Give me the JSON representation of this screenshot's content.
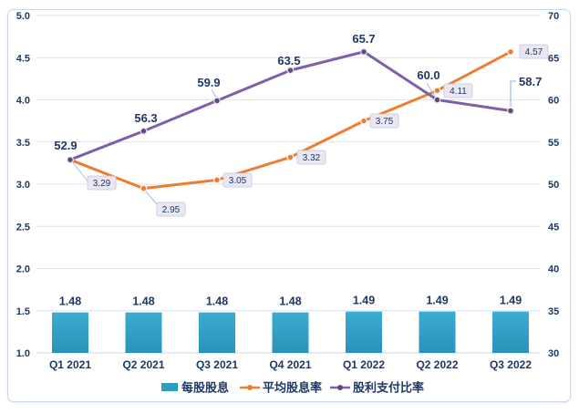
{
  "chart_data": {
    "type": "combo",
    "categories": [
      "Q1 2021",
      "Q2 2021",
      "Q3 2021",
      "Q4 2021",
      "Q1 2022",
      "Q2 2022",
      "Q3 2022"
    ],
    "series": [
      {
        "name": "每股股息",
        "type": "bar",
        "axis": "left",
        "values": [
          1.48,
          1.48,
          1.48,
          1.48,
          1.49,
          1.49,
          1.49
        ],
        "labels": [
          "1.48",
          "1.48",
          "1.48",
          "1.48",
          "1.49",
          "1.49",
          "1.49"
        ]
      },
      {
        "name": "平均股息率",
        "type": "line",
        "axis": "left",
        "values": [
          3.29,
          2.95,
          3.05,
          3.32,
          3.75,
          4.11,
          4.57
        ],
        "labels": [
          "3.29",
          "2.95",
          "3.05",
          "3.32",
          "3.75",
          "4.11",
          "4.57"
        ]
      },
      {
        "name": "股利支付比率",
        "type": "line",
        "axis": "right",
        "values": [
          52.9,
          56.3,
          59.9,
          63.5,
          65.7,
          60.0,
          58.7
        ],
        "labels": [
          "52.9",
          "56.3",
          "59.9",
          "63.5",
          "65.7",
          "60.0",
          "58.7"
        ]
      }
    ],
    "left_axis": {
      "min": 1.0,
      "max": 5.0,
      "step": 0.5,
      "ticks": [
        "5.0",
        "4.5",
        "4.0",
        "3.5",
        "3.0",
        "2.5",
        "2.0",
        "1.5",
        "1.0"
      ]
    },
    "right_axis": {
      "min": 30,
      "max": 70,
      "step": 5,
      "ticks": [
        "70",
        "65",
        "60",
        "55",
        "50",
        "45",
        "40",
        "35",
        "30"
      ]
    },
    "grid": true,
    "legend_position": "bottom",
    "title": ""
  },
  "legend": {
    "items": [
      {
        "label": "每股股息",
        "swatch": "bar-swatch"
      },
      {
        "label": "平均股息率",
        "swatch": "line-dot-swatch"
      },
      {
        "label": "股利支付比率",
        "swatch": "line-dot-swatch"
      }
    ]
  },
  "colors": {
    "bar_top": "#3cacd0",
    "bar_bottom": "#2a92b8",
    "bar_flat": "#2e9dbe",
    "orange_line": "#ed7d31",
    "purple_line": "#7d60a8",
    "purple_marker": "#604a7b",
    "navy_text": "#1f3864",
    "gridline": "#d9e4f1",
    "baseline": "#c9d7e9",
    "leader": "#9dc3e6",
    "label_box_fill": "#e8e7f2",
    "label_box_border": "#c6c3db",
    "card_border": "#cbd8ea"
  }
}
